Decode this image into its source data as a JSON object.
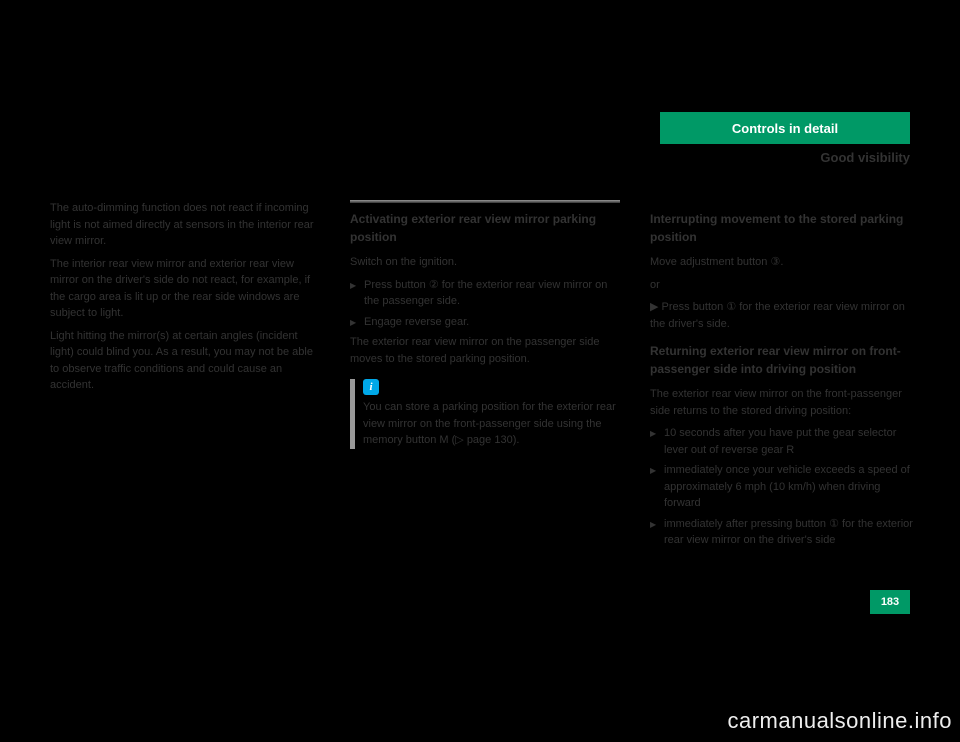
{
  "header": {
    "tab_label": "Controls in detail",
    "subtitle": "Good visibility"
  },
  "col1": {
    "para1": "The auto-dimming function does not react if incoming light is not aimed directly at sensors in the interior rear view mirror.",
    "para2": "The interior rear view mirror and exterior rear view mirror on the driver's side do not react, for example, if the cargo area is lit up or the rear side windows are subject to light.",
    "para3": "Light hitting the mirror(s) at certain angles (incident light) could blind you. As a result, you may not be able to observe traffic conditions and could cause an accident."
  },
  "col2": {
    "heading": "Activating exterior rear view mirror parking position",
    "intro": "Switch on the ignition.",
    "list": [
      "Press button ② for the exterior rear view mirror on the passenger side.",
      "Engage reverse gear."
    ],
    "para_after": "The exterior rear view mirror on the passenger side moves to the stored parking position.",
    "info_text": "You can store a parking position for the exterior rear view mirror on the front-passenger side using the memory button M (▷ page 130)."
  },
  "col3": {
    "heading": "Interrupting movement to the stored parking position",
    "para1": "Move adjustment button ③.",
    "para2_label": "or",
    "para2": "▶ Press button ① for the exterior rear view mirror on the driver's side.",
    "heading2": "Returning exterior rear view mirror on front-passenger side into driving position",
    "para3": "The exterior rear view mirror on the front-passenger side returns to the stored driving position:",
    "list2": [
      "10 seconds after you have put the gear selector lever out of reverse gear R",
      "immediately once your vehicle exceeds a speed of approximately 6 mph (10 km/h) when driving forward",
      "immediately after pressing button ① for the exterior rear view mirror on the driver's side"
    ]
  },
  "page_number": "183",
  "watermark": "carmanualsonline.info",
  "colors": {
    "accent": "#009966",
    "info_icon": "#00a8e8",
    "background": "#000000",
    "page_bg": "#ffffff"
  }
}
